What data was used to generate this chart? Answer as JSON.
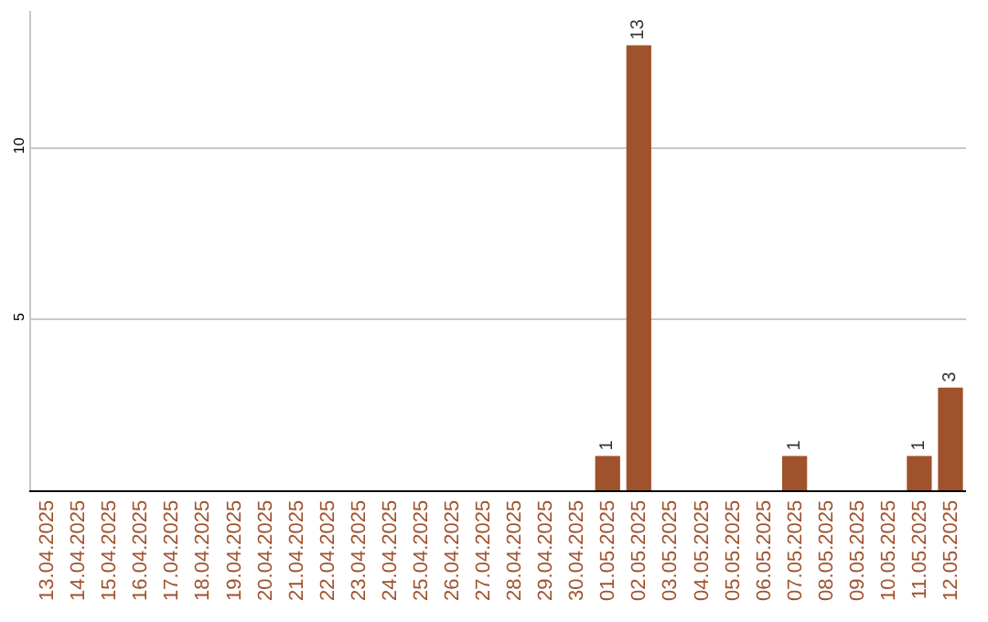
{
  "chart_data": {
    "type": "bar",
    "categories": [
      "13.04.2025",
      "14.04.2025",
      "15.04.2025",
      "16.04.2025",
      "17.04.2025",
      "18.04.2025",
      "19.04.2025",
      "20.04.2025",
      "21.04.2025",
      "22.04.2025",
      "23.04.2025",
      "24.04.2025",
      "25.04.2025",
      "26.04.2025",
      "27.04.2025",
      "28.04.2025",
      "29.04.2025",
      "30.04.2025",
      "01.05.2025",
      "02.05.2025",
      "03.05.2025",
      "04.05.2025",
      "05.05.2025",
      "06.05.2025",
      "07.05.2025",
      "08.05.2025",
      "09.05.2025",
      "10.05.2025",
      "11.05.2025",
      "12.05.2025"
    ],
    "values": [
      0,
      0,
      0,
      0,
      0,
      0,
      0,
      0,
      0,
      0,
      0,
      0,
      0,
      0,
      0,
      0,
      0,
      0,
      1,
      13,
      0,
      0,
      0,
      0,
      1,
      0,
      0,
      0,
      1,
      3
    ],
    "value_labels": [
      null,
      null,
      null,
      null,
      null,
      null,
      null,
      null,
      null,
      null,
      null,
      null,
      null,
      null,
      null,
      null,
      null,
      null,
      "1",
      "13",
      null,
      null,
      null,
      null,
      "1",
      null,
      null,
      null,
      "1",
      "3"
    ],
    "color": "#a0522d",
    "ylim": [
      0,
      14
    ],
    "yticks": [
      5,
      10
    ],
    "grid": "y"
  }
}
